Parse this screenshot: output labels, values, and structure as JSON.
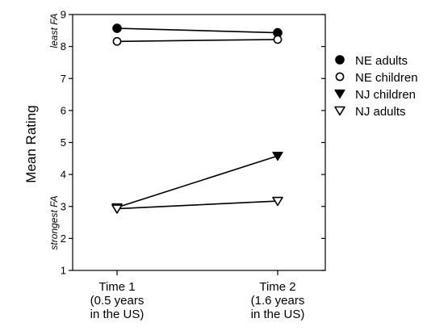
{
  "chart_data": {
    "type": "line",
    "categories": [
      [
        "Time 1",
        "(0.5 years",
        "in the US)"
      ],
      [
        "Time 2",
        "(1.6 years",
        "in the US)"
      ]
    ],
    "ylabel": "Mean Rating",
    "ylim": [
      1,
      9
    ],
    "yticks": [
      "1",
      "2",
      "3",
      "4",
      "5",
      "6",
      "7",
      "8",
      "9"
    ],
    "annotations": {
      "top": "least FA",
      "bottom": "strongest FA"
    },
    "grid": false,
    "legend_position": "right",
    "series": [
      {
        "name": "NE adults",
        "marker": "circle-filled",
        "values": [
          8.57,
          8.43
        ]
      },
      {
        "name": "NE children",
        "marker": "circle-open",
        "values": [
          8.16,
          8.22
        ]
      },
      {
        "name": "NJ children",
        "marker": "triangle-down-filled",
        "values": [
          2.97,
          4.58
        ]
      },
      {
        "name": "NJ adults",
        "marker": "triangle-down-open",
        "values": [
          2.93,
          3.17
        ]
      }
    ]
  }
}
